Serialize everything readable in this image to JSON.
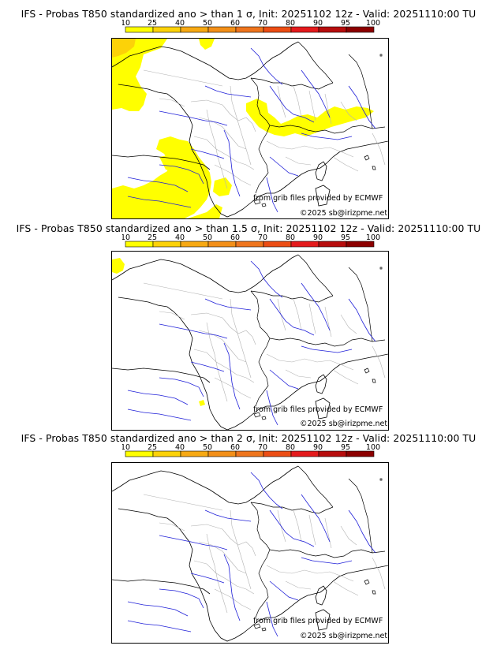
{
  "legend": {
    "ticks": [
      "10",
      "25",
      "40",
      "50",
      "60",
      "70",
      "80",
      "90",
      "95",
      "100"
    ],
    "colors": [
      "#ffff00",
      "#fcd208",
      "#f7a913",
      "#f38f18",
      "#ef751d",
      "#ec4d14",
      "#e41a1c",
      "#b70d0d",
      "#8c0000",
      "#5c0000"
    ]
  },
  "panels": [
    {
      "title": "IFS - Probas T850  standardized ano > than 1 σ, Init: 20251102 12z - Valid: 20251110:00 TU",
      "source_credit": "from grib files provided by ECMWF",
      "copyright": "©2025 sb@irizpme.net"
    },
    {
      "title": "IFS - Probas T850  standardized ano > than 1.5 σ, Init: 20251102 12z - Valid: 20251110:00 TU",
      "source_credit": "from grib files provided by ECMWF",
      "copyright": "©2025 sb@irizpme.net"
    },
    {
      "title": "IFS - Probas T850  standardized ano > than 2 σ, Init: 20251102 12z - Valid: 20251110:00 TU",
      "source_credit": "from grib files provided by ECMWF",
      "copyright": "©2025 sb@irizpme.net"
    }
  ]
}
